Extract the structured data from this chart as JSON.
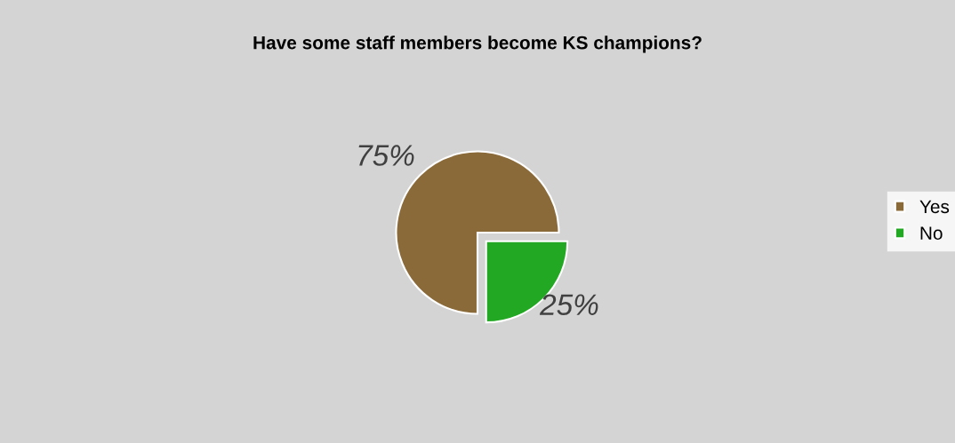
{
  "chart_data": {
    "type": "pie",
    "title": "Have some staff members become KS champions?",
    "categories": [
      "Yes",
      "No"
    ],
    "values": [
      75,
      25
    ],
    "colors": [
      "#8b6a3a",
      "#22a822"
    ],
    "value_labels": [
      "75%",
      "25%"
    ],
    "legend": "right"
  }
}
